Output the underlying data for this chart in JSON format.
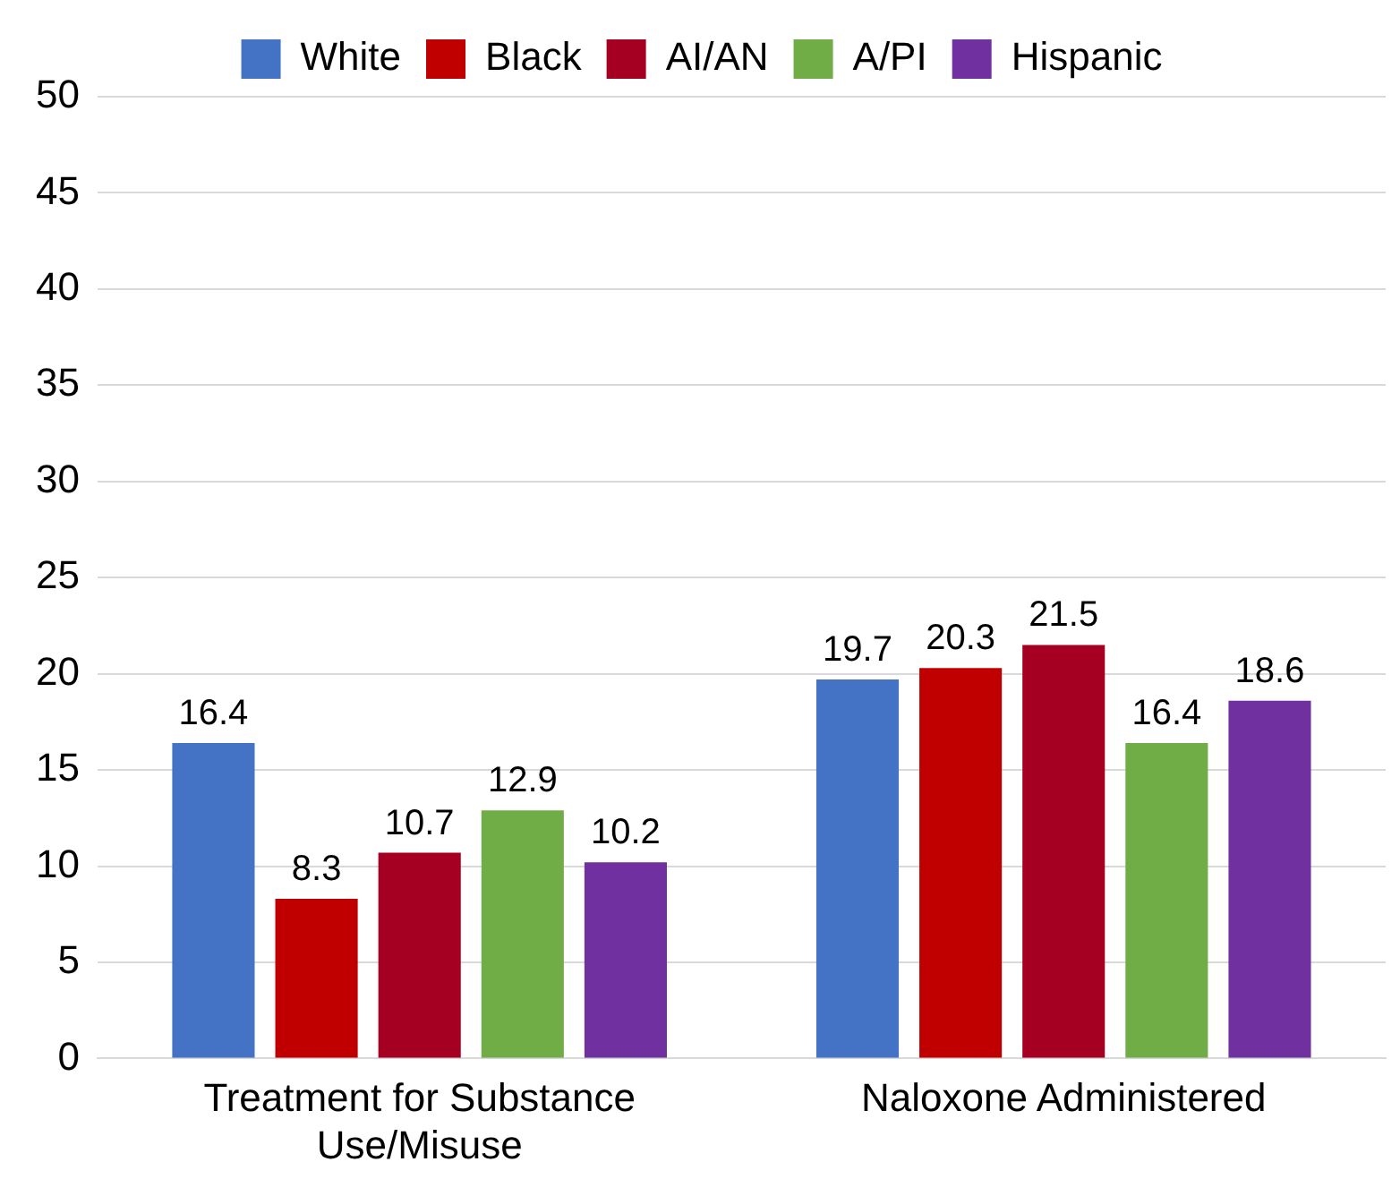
{
  "chart_data": {
    "type": "bar",
    "categories": [
      "Treatment for Substance Use/Misuse",
      "Naloxone Administered"
    ],
    "series": [
      {
        "name": "White",
        "color": "#4472c4",
        "values": [
          16.4,
          19.7
        ]
      },
      {
        "name": "Black",
        "color": "#c00000",
        "values": [
          8.3,
          20.3
        ]
      },
      {
        "name": "AI/AN",
        "color": "#a50021",
        "values": [
          10.7,
          21.5
        ]
      },
      {
        "name": "A/PI",
        "color": "#70ad47",
        "values": [
          12.9,
          16.4
        ]
      },
      {
        "name": "Hispanic",
        "color": "#7030a0",
        "values": [
          10.2,
          18.6
        ]
      }
    ],
    "ylim": [
      0,
      50
    ],
    "yticks": [
      0,
      5,
      10,
      15,
      20,
      25,
      30,
      35,
      40,
      45,
      50
    ],
    "grid": "y",
    "legend": "top",
    "data_labels": true
  }
}
